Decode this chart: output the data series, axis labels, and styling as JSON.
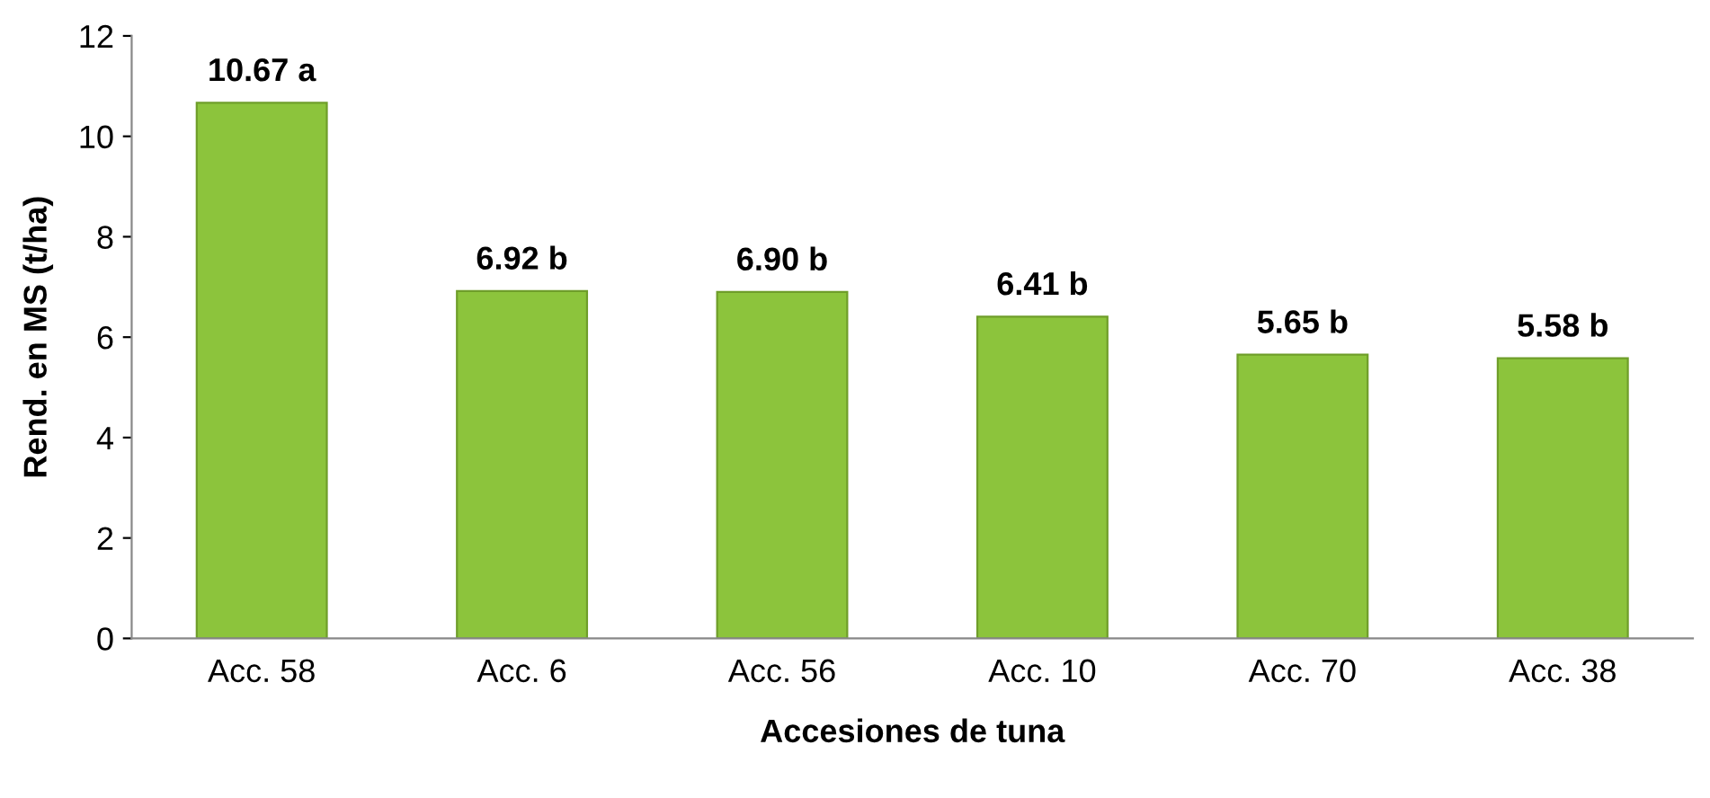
{
  "chart_data": {
    "type": "bar",
    "xlabel": "Accesiones de tuna",
    "ylabel": "Rend. en MS (t/ha)",
    "categories": [
      "Acc. 58",
      "Acc. 6",
      "Acc. 56",
      "Acc. 10",
      "Acc. 70",
      "Acc. 38"
    ],
    "values": [
      10.67,
      6.92,
      6.9,
      6.41,
      5.65,
      5.58
    ],
    "value_labels": [
      "10.67 a",
      "6.92 b",
      "6.90 b",
      "6.41 b",
      "5.65 b",
      "5.58 b"
    ],
    "color": "#8cc43c",
    "ylim": [
      0,
      12
    ],
    "yticks": [
      0,
      2,
      4,
      6,
      8,
      10,
      12
    ],
    "grid": false,
    "legend": false
  }
}
